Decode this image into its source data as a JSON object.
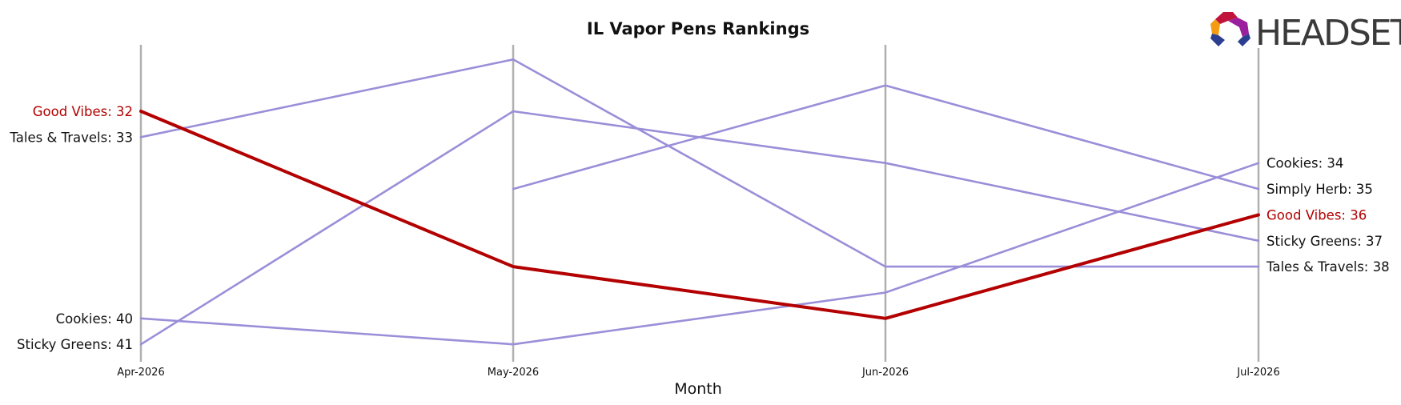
{
  "chart_data": {
    "type": "line",
    "title": "IL Vapor Pens Rankings",
    "xlabel": "Month",
    "ylabel": "",
    "categories": [
      "Apr-2026",
      "May-2026",
      "Jun-2026",
      "Jul-2026"
    ],
    "y_inverted": true,
    "y_range": [
      30,
      42
    ],
    "grid": "vertical lines at each month",
    "highlight_color": "#b30000",
    "other_color": "#9a8fd8",
    "series": [
      {
        "name": "Good Vibes",
        "values": [
          32,
          38,
          40,
          36
        ],
        "highlight": true
      },
      {
        "name": "Tales & Travels",
        "values": [
          33,
          30,
          38,
          38
        ],
        "highlight": false
      },
      {
        "name": "Sticky Greens",
        "values": [
          41,
          32,
          34,
          37
        ],
        "highlight": false
      },
      {
        "name": "Cookies",
        "values": [
          40,
          41,
          39,
          34
        ],
        "highlight": false
      },
      {
        "name": "Simply Herb",
        "values": [
          null,
          35,
          31,
          35
        ],
        "highlight": false
      }
    ],
    "left_labels": [
      {
        "series": "Good Vibes",
        "text": "Good Vibes: 32"
      },
      {
        "series": "Tales & Travels",
        "text": "Tales & Travels: 33"
      },
      {
        "series": "Cookies",
        "text": "Cookies: 40"
      },
      {
        "series": "Sticky Greens",
        "text": "Sticky Greens: 41"
      }
    ],
    "right_labels": [
      {
        "series": "Cookies",
        "text": "Cookies: 34"
      },
      {
        "series": "Simply Herb",
        "text": "Simply Herb: 35"
      },
      {
        "series": "Good Vibes",
        "text": "Good Vibes: 36"
      },
      {
        "series": "Sticky Greens",
        "text": "Sticky Greens: 37"
      },
      {
        "series": "Tales & Travels",
        "text": "Tales & Travels: 38"
      }
    ]
  },
  "logo": {
    "text": "HEADSET",
    "icon": "headset-logo-icon"
  }
}
